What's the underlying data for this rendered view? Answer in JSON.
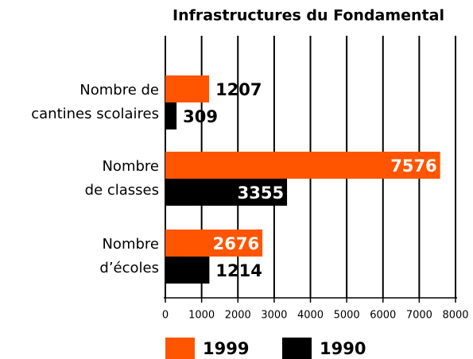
{
  "chart_data": {
    "type": "bar",
    "orientation": "horizontal",
    "title": "Infrastructures du Fondamental",
    "categories": [
      [
        "Nombre de",
        "cantines scolaires"
      ],
      [
        "Nombre",
        "de classes"
      ],
      [
        "Nombre",
        "d’écoles"
      ]
    ],
    "series": [
      {
        "name": "1999",
        "color": "#ff5500",
        "values": [
          1207,
          7576,
          2676
        ]
      },
      {
        "name": "1990",
        "color": "#000000",
        "values": [
          309,
          3355,
          1214
        ]
      }
    ],
    "xlim": [
      0,
      8000
    ],
    "xticks": [
      0,
      1000,
      2000,
      3000,
      4000,
      5000,
      6000,
      7000,
      8000
    ],
    "grid": true,
    "legend": "bottom"
  }
}
